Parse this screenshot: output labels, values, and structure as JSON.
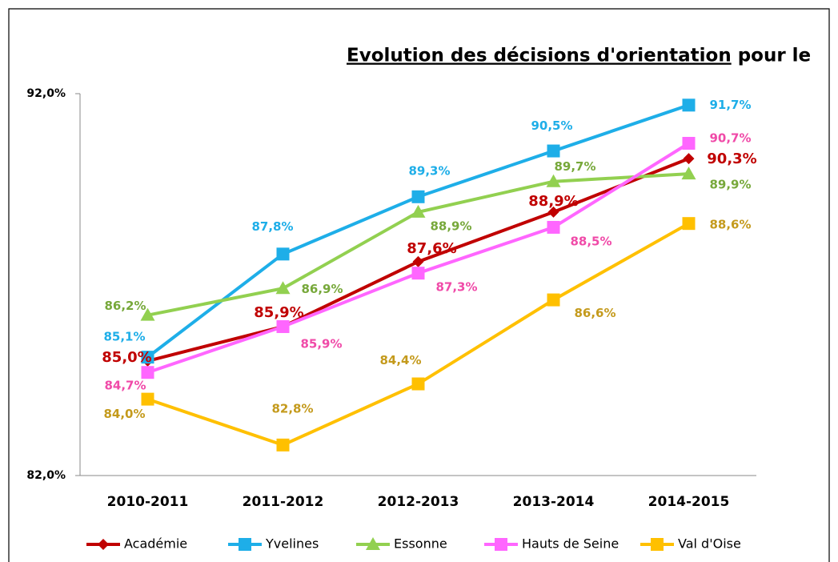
{
  "chart_data": {
    "type": "line",
    "title": "Evolution des décisions d'orientation",
    "title_rest": "pour le",
    "categories": [
      "2010-2011",
      "2011-2012",
      "2012-2013",
      "2013-2014",
      "2014-2015"
    ],
    "ylim": [
      82,
      92
    ],
    "yticks": [
      {
        "value": 82,
        "label": "82,0%"
      },
      {
        "value": 92,
        "label": "92,0%"
      }
    ],
    "legend": "bottom",
    "series": [
      {
        "name": "Académie",
        "color": "#c00000",
        "label_color": "#c00000",
        "marker": "diamond",
        "values": [
          85.0,
          85.9,
          87.6,
          88.9,
          90.3
        ],
        "value_labels": [
          "85,0%",
          "85,9%",
          "87,6%",
          "88,9%",
          "90,3%"
        ]
      },
      {
        "name": "Yvelines",
        "color": "#1eaee8",
        "label_color": "#1eaee8",
        "marker": "square",
        "values": [
          85.1,
          87.8,
          89.3,
          90.5,
          91.7
        ],
        "value_labels": [
          "85,1%",
          "87,8%",
          "89,3%",
          "90,5%",
          "91,7%"
        ]
      },
      {
        "name": "Essonne",
        "color": "#92d050",
        "label_color": "#77a83a",
        "marker": "triangle",
        "values": [
          86.2,
          86.9,
          88.9,
          89.7,
          89.9
        ],
        "value_labels": [
          "86,2%",
          "86,9%",
          "88,9%",
          "89,7%",
          "89,9%"
        ]
      },
      {
        "name": "Hauts de Seine",
        "color": "#ff66ff",
        "label_color": "#f04aa8",
        "marker": "square",
        "values": [
          84.7,
          85.9,
          87.3,
          88.5,
          90.7
        ],
        "value_labels": [
          "84,7%",
          "85,9%",
          "87,3%",
          "88,5%",
          "90,7%"
        ]
      },
      {
        "name": "Val d'Oise",
        "color": "#ffc000",
        "label_color": "#c49a1c",
        "marker": "square",
        "values": [
          84.0,
          82.8,
          84.4,
          86.6,
          88.6
        ],
        "value_labels": [
          "84,0%",
          "82,8%",
          "84,4%",
          "86,6%",
          "88,6%"
        ]
      }
    ]
  }
}
